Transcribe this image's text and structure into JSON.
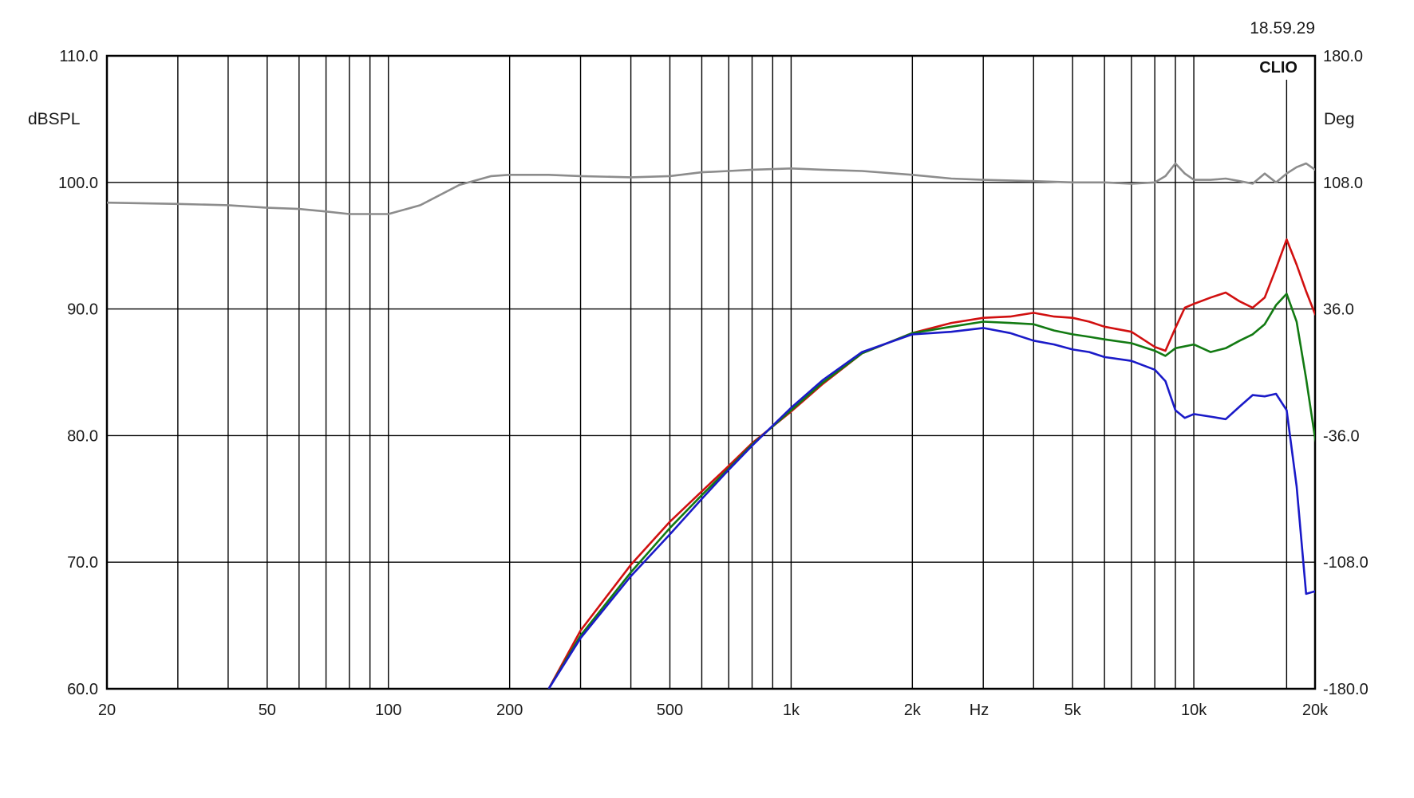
{
  "timestamp": "18.59.29",
  "brand": "CLIO",
  "chart_data": {
    "type": "line",
    "x_scale": "log",
    "x_unit_label": "Hz",
    "xlim": [
      20,
      20000
    ],
    "x_ticks": [
      20,
      50,
      100,
      200,
      500,
      1000,
      2000,
      5000,
      10000,
      20000
    ],
    "x_tick_labels": [
      "20",
      "50",
      "100",
      "200",
      "500",
      "1k",
      "2k",
      "5k",
      "10k",
      "20k"
    ],
    "ylabel": "dBSPL",
    "ylim": [
      60,
      110
    ],
    "y_ticks": [
      60,
      70,
      80,
      90,
      100,
      110
    ],
    "y_tick_labels": [
      "60.0",
      "70.0",
      "80.0",
      "90.0",
      "100.0",
      "110.0"
    ],
    "y2label": "Deg",
    "y2lim": [
      -180,
      180
    ],
    "y2_ticks": [
      -180,
      -108,
      -36,
      36,
      108,
      180
    ],
    "y2_tick_labels": [
      "-180.0",
      "-108.0",
      "-36.0",
      "36.0",
      "108.0",
      "180.0"
    ],
    "grid": true,
    "series": [
      {
        "color": "#8c8c8c",
        "points": [
          [
            20,
            98.4
          ],
          [
            30,
            98.3
          ],
          [
            40,
            98.2
          ],
          [
            50,
            98.0
          ],
          [
            60,
            97.9
          ],
          [
            70,
            97.7
          ],
          [
            80,
            97.5
          ],
          [
            100,
            97.5
          ],
          [
            120,
            98.2
          ],
          [
            150,
            99.8
          ],
          [
            180,
            100.5
          ],
          [
            200,
            100.6
          ],
          [
            250,
            100.6
          ],
          [
            300,
            100.5
          ],
          [
            400,
            100.4
          ],
          [
            500,
            100.5
          ],
          [
            600,
            100.8
          ],
          [
            700,
            100.9
          ],
          [
            800,
            101.0
          ],
          [
            1000,
            101.1
          ],
          [
            1200,
            101.0
          ],
          [
            1500,
            100.9
          ],
          [
            2000,
            100.6
          ],
          [
            2500,
            100.3
          ],
          [
            3000,
            100.2
          ],
          [
            4000,
            100.1
          ],
          [
            5000,
            100.0
          ],
          [
            6000,
            100.0
          ],
          [
            7000,
            99.9
          ],
          [
            8000,
            100.0
          ],
          [
            8500,
            100.5
          ],
          [
            9000,
            101.5
          ],
          [
            9500,
            100.7
          ],
          [
            10000,
            100.2
          ],
          [
            11000,
            100.2
          ],
          [
            12000,
            100.3
          ],
          [
            13000,
            100.1
          ],
          [
            14000,
            99.9
          ],
          [
            15000,
            100.7
          ],
          [
            16000,
            100.0
          ],
          [
            17000,
            100.7
          ],
          [
            18000,
            101.2
          ],
          [
            19000,
            101.5
          ],
          [
            20000,
            101.0
          ],
          [
            22000,
            100.3
          ]
        ]
      },
      {
        "color": "#d11010",
        "points": [
          [
            250,
            60.0
          ],
          [
            300,
            64.6
          ],
          [
            400,
            69.8
          ],
          [
            500,
            73.2
          ],
          [
            600,
            75.6
          ],
          [
            700,
            77.6
          ],
          [
            800,
            79.4
          ],
          [
            1000,
            81.9
          ],
          [
            1200,
            84.1
          ],
          [
            1500,
            86.5
          ],
          [
            2000,
            88.1
          ],
          [
            2500,
            88.9
          ],
          [
            3000,
            89.3
          ],
          [
            3500,
            89.4
          ],
          [
            4000,
            89.7
          ],
          [
            4500,
            89.4
          ],
          [
            5000,
            89.3
          ],
          [
            5500,
            89.0
          ],
          [
            6000,
            88.6
          ],
          [
            7000,
            88.2
          ],
          [
            8000,
            87.0
          ],
          [
            8500,
            86.7
          ],
          [
            9000,
            88.5
          ],
          [
            9500,
            90.1
          ],
          [
            10000,
            90.4
          ],
          [
            11000,
            90.9
          ],
          [
            12000,
            91.3
          ],
          [
            13000,
            90.6
          ],
          [
            14000,
            90.1
          ],
          [
            15000,
            90.9
          ],
          [
            16000,
            93.2
          ],
          [
            17000,
            95.5
          ],
          [
            18000,
            93.5
          ],
          [
            19000,
            91.4
          ],
          [
            20000,
            89.6
          ],
          [
            21000,
            88.7
          ],
          [
            22000,
            88.3
          ]
        ]
      },
      {
        "color": "#127a12",
        "points": [
          [
            250,
            60.0
          ],
          [
            300,
            64.2
          ],
          [
            400,
            69.2
          ],
          [
            500,
            72.7
          ],
          [
            600,
            75.3
          ],
          [
            700,
            77.4
          ],
          [
            800,
            79.3
          ],
          [
            1000,
            82.0
          ],
          [
            1200,
            84.2
          ],
          [
            1500,
            86.5
          ],
          [
            2000,
            88.1
          ],
          [
            2500,
            88.6
          ],
          [
            3000,
            89.0
          ],
          [
            3500,
            88.9
          ],
          [
            4000,
            88.8
          ],
          [
            4500,
            88.3
          ],
          [
            5000,
            88.0
          ],
          [
            5500,
            87.8
          ],
          [
            6000,
            87.6
          ],
          [
            7000,
            87.3
          ],
          [
            8000,
            86.7
          ],
          [
            8500,
            86.3
          ],
          [
            9000,
            86.9
          ],
          [
            10000,
            87.2
          ],
          [
            11000,
            86.6
          ],
          [
            12000,
            86.9
          ],
          [
            13000,
            87.5
          ],
          [
            14000,
            88.0
          ],
          [
            15000,
            88.8
          ],
          [
            16000,
            90.3
          ],
          [
            17000,
            91.2
          ],
          [
            18000,
            89.0
          ],
          [
            19000,
            84.5
          ],
          [
            20000,
            79.8
          ],
          [
            21000,
            77.0
          ],
          [
            22000,
            73.5
          ]
        ]
      },
      {
        "color": "#1a1ac8",
        "points": [
          [
            250,
            60.0
          ],
          [
            300,
            64.0
          ],
          [
            400,
            68.9
          ],
          [
            500,
            72.2
          ],
          [
            600,
            75.0
          ],
          [
            700,
            77.3
          ],
          [
            800,
            79.2
          ],
          [
            1000,
            82.2
          ],
          [
            1200,
            84.4
          ],
          [
            1500,
            86.6
          ],
          [
            2000,
            88.0
          ],
          [
            2500,
            88.2
          ],
          [
            3000,
            88.5
          ],
          [
            3500,
            88.1
          ],
          [
            4000,
            87.5
          ],
          [
            4500,
            87.2
          ],
          [
            5000,
            86.8
          ],
          [
            5500,
            86.6
          ],
          [
            6000,
            86.2
          ],
          [
            7000,
            85.9
          ],
          [
            8000,
            85.2
          ],
          [
            8500,
            84.3
          ],
          [
            9000,
            82.0
          ],
          [
            9500,
            81.4
          ],
          [
            10000,
            81.7
          ],
          [
            11000,
            81.5
          ],
          [
            12000,
            81.3
          ],
          [
            13000,
            82.3
          ],
          [
            14000,
            83.2
          ],
          [
            15000,
            83.1
          ],
          [
            16000,
            83.3
          ],
          [
            17000,
            82.0
          ],
          [
            18000,
            76.0
          ],
          [
            19000,
            67.5
          ],
          [
            20000,
            67.7
          ],
          [
            21000,
            66.0
          ],
          [
            22000,
            60.0
          ]
        ]
      }
    ]
  }
}
